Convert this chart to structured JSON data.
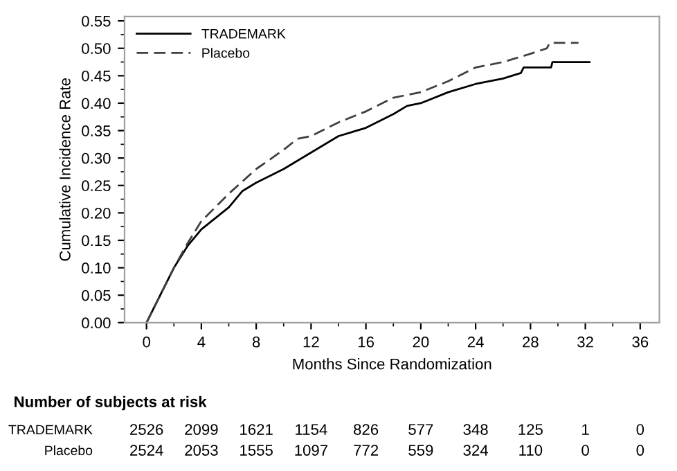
{
  "chart_data": {
    "type": "step",
    "xlabel": "Months Since Randomization",
    "ylabel": "Cumulative Incidence Rate",
    "series": [
      {
        "name": "TRADEMARK",
        "color": "#000000",
        "line_style": "solid",
        "x": [
          0,
          1,
          2,
          3,
          4,
          6,
          7,
          8,
          10,
          12,
          14,
          16,
          18,
          19,
          20,
          22,
          24,
          26,
          27.3,
          27.5,
          29.5,
          29.6,
          32.3
        ],
        "values": [
          0,
          0.05,
          0.1,
          0.14,
          0.17,
          0.21,
          0.24,
          0.255,
          0.28,
          0.31,
          0.34,
          0.355,
          0.38,
          0.395,
          0.4,
          0.42,
          0.435,
          0.445,
          0.455,
          0.465,
          0.465,
          0.475,
          0.475
        ]
      },
      {
        "name": "Placebo",
        "color": "#404040",
        "line_style": "dashed",
        "x": [
          0,
          1,
          2,
          3,
          4,
          6,
          8,
          10,
          11,
          12,
          14,
          16,
          18,
          20,
          22,
          24,
          26,
          28,
          29.2,
          29.4,
          31.5
        ],
        "values": [
          0,
          0.05,
          0.1,
          0.145,
          0.185,
          0.235,
          0.28,
          0.315,
          0.335,
          0.34,
          0.365,
          0.385,
          0.41,
          0.42,
          0.44,
          0.465,
          0.475,
          0.49,
          0.5,
          0.51,
          0.51
        ]
      }
    ],
    "xlim": [
      -1.6,
      37.4
    ],
    "xticks": [
      0,
      4,
      8,
      12,
      16,
      20,
      24,
      28,
      32,
      36
    ],
    "ylim": [
      0,
      0.558
    ],
    "yticks": [
      {
        "value": 0,
        "label": "0.00"
      },
      {
        "value": 0.05,
        "label": "0.05"
      },
      {
        "value": 0.1,
        "label": "0.10"
      },
      {
        "value": 0.15,
        "label": "0.15"
      },
      {
        "value": 0.2,
        "label": "0.20"
      },
      {
        "value": 0.25,
        "label": "0.25"
      },
      {
        "value": 0.3,
        "label": "0.30"
      },
      {
        "value": 0.35,
        "label": "0.35"
      },
      {
        "value": 0.4,
        "label": "0.40"
      },
      {
        "value": 0.45,
        "label": "0.45"
      },
      {
        "value": 0.5,
        "label": "0.50"
      },
      {
        "value": 0.55,
        "label": "0.55"
      }
    ],
    "grid": false,
    "legend": "top left",
    "annotations": [
      "Number of subjects at risk",
      "TRADEMARK",
      "2526",
      "2099",
      "1621",
      "1154",
      "826",
      "577",
      "348",
      "125",
      "1",
      "0",
      "Placebo",
      "2524",
      "2053",
      "1555",
      "1097",
      "772",
      "559",
      "324",
      "110",
      "0",
      "0"
    ]
  }
}
